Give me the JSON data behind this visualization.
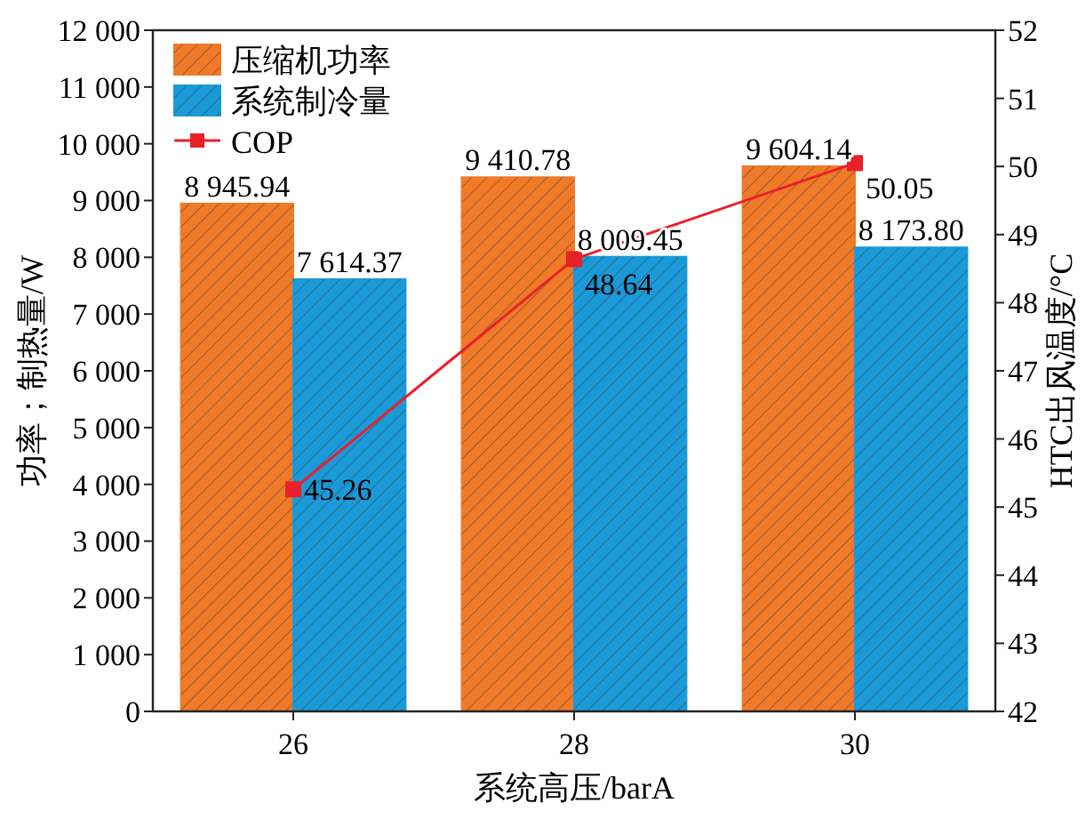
{
  "chart_data": {
    "type": "bar",
    "categories": [
      "26",
      "28",
      "30"
    ],
    "xlabel": "系统高压/barA",
    "ylabel": "功率；制热量/W",
    "y2label": "HTC出风温度/°C",
    "ylim": [
      0,
      12000
    ],
    "yticks": [
      {
        "value": 0,
        "label": "0"
      },
      {
        "value": 1000,
        "label": "1 000"
      },
      {
        "value": 2000,
        "label": "2 000"
      },
      {
        "value": 3000,
        "label": "3 000"
      },
      {
        "value": 4000,
        "label": "4 000"
      },
      {
        "value": 5000,
        "label": "5 000"
      },
      {
        "value": 6000,
        "label": "6 000"
      },
      {
        "value": 7000,
        "label": "7 000"
      },
      {
        "value": 8000,
        "label": "8 000"
      },
      {
        "value": 9000,
        "label": "9 000"
      },
      {
        "value": 10000,
        "label": "10 000"
      },
      {
        "value": 11000,
        "label": "11 000"
      },
      {
        "value": 12000,
        "label": "12 000"
      }
    ],
    "y2lim": [
      42,
      52
    ],
    "y2ticks": [
      42,
      43,
      44,
      45,
      46,
      47,
      48,
      49,
      50,
      51,
      52
    ],
    "series": [
      {
        "name": "压缩机功率",
        "color": "#f07a28",
        "values": [
          8945.94,
          9410.78,
          9604.14
        ],
        "value_labels": [
          "8 945.94",
          "9 410.78",
          "9 604.14"
        ]
      },
      {
        "name": "系统制冷量",
        "color": "#1a9ad8",
        "values": [
          7614.37,
          8009.45,
          8173.8
        ],
        "value_labels": [
          "7 614.37",
          "8 009.45",
          "8 173.80"
        ]
      },
      {
        "name": "COP",
        "type": "line",
        "axis": "y2",
        "color": "#e8202a",
        "marker": "square",
        "values": [
          45.26,
          48.64,
          50.05
        ],
        "value_labels": [
          "45.26",
          "48.64",
          "50.05"
        ]
      }
    ],
    "legend": "top left",
    "grid": false
  }
}
